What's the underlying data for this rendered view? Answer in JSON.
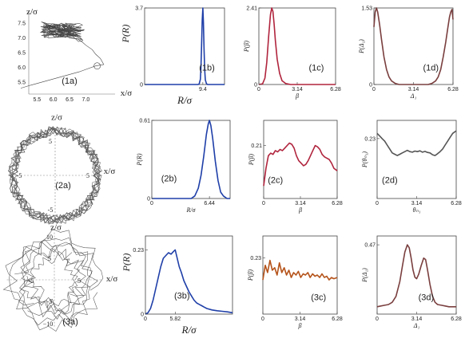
{
  "chart_data": [
    {
      "id": "1a",
      "type": "line",
      "kind": "trajectory",
      "panel_label": "(1a)",
      "xlabel": "x/σ",
      "ylabel": "z/σ",
      "xlim": [
        5.0,
        7.9
      ],
      "ylim": [
        5.1,
        7.9
      ],
      "xticks": [
        "5.5",
        "6.0",
        "6.5",
        "7.0"
      ],
      "xtick_values": [
        5.5,
        6.0,
        6.5,
        7.0
      ],
      "yticks": [
        "7.5",
        "7.0",
        "6.5",
        "6.0",
        "5.5"
      ],
      "ytick_values": [
        7.5,
        7.0,
        6.5,
        6.0,
        5.5
      ],
      "x": [
        5.0,
        5.3,
        5.8,
        6.3,
        6.8,
        7.05,
        7.3,
        7.55,
        7.45,
        7.3,
        7.2,
        7.0,
        6.9,
        6.75,
        6.55,
        6.4,
        6.25,
        6.1,
        5.95,
        5.8,
        5.7,
        5.6,
        5.75,
        5.9,
        6.05,
        6.2,
        6.35,
        6.5,
        6.6,
        6.7,
        6.8,
        6.9,
        6.95,
        6.8,
        6.65,
        6.5,
        6.35,
        6.2,
        6.05,
        5.9,
        5.8,
        6.0,
        6.2,
        6.4,
        6.6,
        6.8,
        6.9
      ],
      "y": [
        5.3,
        5.4,
        5.55,
        5.7,
        5.85,
        5.95,
        6.05,
        6.1,
        6.3,
        6.45,
        6.6,
        6.75,
        6.85,
        6.95,
        7.05,
        7.12,
        7.2,
        7.28,
        7.35,
        7.45,
        7.55,
        7.6,
        7.5,
        7.42,
        7.35,
        7.3,
        7.25,
        7.2,
        7.15,
        7.12,
        7.05,
        6.95,
        6.85,
        6.9,
        7.0,
        7.08,
        7.15,
        7.22,
        7.3,
        7.38,
        7.48,
        7.4,
        7.3,
        7.2,
        7.1,
        7.0,
        6.95
      ]
    },
    {
      "id": "1b",
      "type": "line",
      "panel_label": "(1b)",
      "xlabel": "R/σ",
      "ylabel": "P(R)",
      "color": "#1f3fa8",
      "xlim": [
        0,
        12.9
      ],
      "ylim": [
        0,
        3.7
      ],
      "xticks": [
        "9.4"
      ],
      "xtick_values": [
        9.4
      ],
      "yticks": [
        "0",
        "3.7"
      ],
      "ytick_values": [
        0,
        3.7
      ],
      "x": [
        0,
        8.6,
        8.8,
        9.0,
        9.1,
        9.2,
        9.3,
        9.4,
        9.5,
        9.6,
        9.7,
        9.8,
        10.0,
        10.2,
        12.9
      ],
      "y": [
        0,
        0,
        0.02,
        0.25,
        0.8,
        1.9,
        3.1,
        3.7,
        3.0,
        1.7,
        0.7,
        0.22,
        0.03,
        0,
        0
      ]
    },
    {
      "id": "1c",
      "type": "line",
      "panel_label": "(1c)",
      "xlabel": "β",
      "ylabel": "P(β)",
      "color": "#b0243d",
      "xlim": [
        0,
        6.28
      ],
      "ylim": [
        0,
        2.41
      ],
      "xticks": [
        "0",
        "3.14",
        "6.28"
      ],
      "xtick_values": [
        0,
        3.14,
        6.28
      ],
      "yticks": [
        "0",
        "2.41"
      ],
      "ytick_values": [
        0,
        2.41
      ],
      "x": [
        0,
        0.3,
        0.5,
        0.65,
        0.8,
        0.95,
        1.05,
        1.15,
        1.25,
        1.35,
        1.5,
        1.7,
        1.9,
        2.2,
        2.6,
        6.28
      ],
      "y": [
        0,
        0.02,
        0.2,
        0.7,
        1.5,
        2.2,
        2.41,
        2.3,
        1.9,
        1.4,
        0.8,
        0.35,
        0.12,
        0.03,
        0,
        0
      ]
    },
    {
      "id": "1d",
      "type": "line",
      "panel_label": "(1d)",
      "xlabel": "Δ₁",
      "ylabel": "P(Δ₁)",
      "color": "#7a3e3e",
      "xlim": [
        0,
        6.28
      ],
      "ylim": [
        0,
        1.53
      ],
      "xticks": [
        "0",
        "3.14",
        "6.28"
      ],
      "xtick_values": [
        0,
        3.14,
        6.28
      ],
      "yticks": [
        "0",
        "1.53"
      ],
      "ytick_values": [
        0,
        1.53
      ],
      "x": [
        0,
        0.1,
        0.2,
        0.3,
        0.45,
        0.6,
        0.8,
        1.0,
        1.2,
        1.4,
        1.7,
        2.0,
        2.4,
        3.14,
        3.9,
        4.3,
        4.6,
        4.9,
        5.1,
        5.3,
        5.5,
        5.7,
        5.85,
        6.0,
        6.1,
        6.2,
        6.28
      ],
      "y": [
        1.15,
        1.45,
        1.53,
        1.45,
        1.2,
        0.9,
        0.55,
        0.3,
        0.15,
        0.07,
        0.02,
        0,
        0,
        0,
        0,
        0,
        0.02,
        0.07,
        0.15,
        0.3,
        0.55,
        0.85,
        1.1,
        1.35,
        1.45,
        1.5,
        1.3
      ]
    },
    {
      "id": "2a",
      "type": "line",
      "kind": "trajectory",
      "panel_label": "(2a)",
      "xlabel": "x/σ",
      "ylabel": "z/σ",
      "xlim": [
        -7.5,
        7.5
      ],
      "ylim": [
        -7.5,
        7.5
      ],
      "ticks": [
        "5",
        "5",
        "-5",
        "-5"
      ],
      "ring_radius": 6.44
    },
    {
      "id": "2b",
      "type": "line",
      "panel_label": "(2b)",
      "xlabel": "R/σ",
      "ylabel": "P(R)",
      "color": "#1f3fa8",
      "xlim": [
        0,
        8.75
      ],
      "ylim": [
        0,
        0.61
      ],
      "xticks": [
        "0",
        "6.44"
      ],
      "xtick_values": [
        0,
        6.44
      ],
      "yticks": [
        "0",
        "0.61"
      ],
      "ytick_values": [
        0,
        0.61
      ],
      "x": [
        0,
        4.4,
        4.8,
        5.2,
        5.5,
        5.8,
        6.1,
        6.3,
        6.44,
        6.6,
        6.8,
        7.1,
        7.4,
        7.7,
        8.0,
        8.4,
        8.75
      ],
      "y": [
        0,
        0,
        0.02,
        0.08,
        0.18,
        0.33,
        0.5,
        0.58,
        0.61,
        0.57,
        0.47,
        0.29,
        0.14,
        0.05,
        0.02,
        0,
        0
      ]
    },
    {
      "id": "2c",
      "type": "line",
      "panel_label": "(2c)",
      "xlabel": "β",
      "ylabel": "P(β)",
      "color": "#b0243d",
      "xlim": [
        0,
        6.28
      ],
      "ylim": [
        0,
        0.31
      ],
      "xticks": [
        "0",
        "3.14",
        "6.28"
      ],
      "xtick_values": [
        0,
        3.14,
        6.28
      ],
      "yticks": [
        "0.21"
      ],
      "ytick_values": [
        0.21
      ],
      "x": [
        0,
        0.2,
        0.4,
        0.6,
        0.8,
        1.0,
        1.2,
        1.4,
        1.6,
        1.8,
        2.0,
        2.2,
        2.4,
        2.6,
        2.8,
        3.0,
        3.2,
        3.4,
        3.6,
        3.8,
        4.0,
        4.2,
        4.4,
        4.6,
        4.8,
        5.0,
        5.2,
        5.4,
        5.6,
        5.8,
        6.0,
        6.28
      ],
      "y": [
        0.05,
        0.12,
        0.17,
        0.18,
        0.175,
        0.19,
        0.185,
        0.195,
        0.19,
        0.2,
        0.21,
        0.22,
        0.215,
        0.2,
        0.17,
        0.15,
        0.14,
        0.13,
        0.135,
        0.15,
        0.17,
        0.19,
        0.21,
        0.205,
        0.195,
        0.175,
        0.165,
        0.16,
        0.155,
        0.14,
        0.12,
        0.11
      ]
    },
    {
      "id": "2d",
      "type": "line",
      "panel_label": "(2d)",
      "xlabel": "θₙ₁",
      "ylabel": "P(θₙ₁)",
      "color": "#555555",
      "xlim": [
        0,
        6.28
      ],
      "ylim": [
        0,
        0.3
      ],
      "xticks": [
        "0",
        "3.14",
        "6.28"
      ],
      "xtick_values": [
        0,
        3.14,
        6.28
      ],
      "yticks": [
        "0.23"
      ],
      "ytick_values": [
        0.23
      ],
      "x": [
        0,
        0.2,
        0.4,
        0.6,
        0.8,
        1.0,
        1.2,
        1.4,
        1.6,
        1.8,
        2.0,
        2.2,
        2.4,
        2.6,
        2.8,
        3.0,
        3.2,
        3.4,
        3.6,
        3.8,
        4.0,
        4.2,
        4.4,
        4.6,
        4.8,
        5.0,
        5.2,
        5.4,
        5.6,
        5.8,
        6.0,
        6.28
      ],
      "y": [
        0.25,
        0.24,
        0.23,
        0.22,
        0.205,
        0.19,
        0.175,
        0.17,
        0.165,
        0.17,
        0.175,
        0.18,
        0.185,
        0.18,
        0.178,
        0.182,
        0.18,
        0.183,
        0.178,
        0.181,
        0.177,
        0.175,
        0.168,
        0.165,
        0.172,
        0.18,
        0.19,
        0.205,
        0.22,
        0.235,
        0.25,
        0.26
      ]
    },
    {
      "id": "3a",
      "type": "line",
      "kind": "trajectory",
      "panel_label": "(3a)",
      "xlabel": "x/σ",
      "ylabel": "z/σ",
      "xlim": [
        -12,
        12
      ],
      "ylim": [
        -12,
        12
      ],
      "ticks": [
        "10",
        "5",
        "-5",
        "-5",
        "5",
        "−10"
      ]
    },
    {
      "id": "3b",
      "type": "line",
      "panel_label": "(3b)",
      "xlabel": "R/σ",
      "ylabel": "P(R)",
      "color": "#1f3fa8",
      "xlim": [
        0,
        17
      ],
      "ylim": [
        0,
        0.28
      ],
      "xticks": [
        "0",
        "5.82"
      ],
      "xtick_values": [
        0,
        5.82
      ],
      "yticks": [
        "0",
        "0.23"
      ],
      "ytick_values": [
        0,
        0.23
      ],
      "x": [
        0,
        0.5,
        1.0,
        1.5,
        2.0,
        2.5,
        3.0,
        3.5,
        4.0,
        4.5,
        5.0,
        5.5,
        5.82,
        6.2,
        6.6,
        7.0,
        7.5,
        8.0,
        8.5,
        9.0,
        9.5,
        10.0,
        10.5,
        11.0,
        11.5,
        12.0,
        13.0,
        14.0,
        15.0,
        16.0,
        17.0
      ],
      "y": [
        0,
        0.005,
        0.02,
        0.05,
        0.09,
        0.13,
        0.17,
        0.2,
        0.21,
        0.22,
        0.215,
        0.225,
        0.23,
        0.2,
        0.17,
        0.15,
        0.12,
        0.1,
        0.08,
        0.065,
        0.05,
        0.04,
        0.035,
        0.03,
        0.025,
        0.02,
        0.015,
        0.012,
        0.01,
        0.008,
        0.005
      ]
    },
    {
      "id": "3c",
      "type": "line",
      "panel_label": "(3c)",
      "xlabel": "β",
      "ylabel": "P(β)",
      "color": "#b5531a",
      "xlim": [
        0,
        6.28
      ],
      "ylim": [
        0,
        0.32
      ],
      "xticks": [
        "0",
        "3.14",
        "6.28"
      ],
      "xtick_values": [
        0,
        3.14,
        6.28
      ],
      "yticks": [
        "0.23"
      ],
      "ytick_values": [
        0.23
      ],
      "x": [
        0,
        0.2,
        0.4,
        0.6,
        0.8,
        1.0,
        1.2,
        1.4,
        1.6,
        1.8,
        2.0,
        2.2,
        2.4,
        2.6,
        2.8,
        3.0,
        3.2,
        3.4,
        3.6,
        3.8,
        4.0,
        4.2,
        4.4,
        4.6,
        4.8,
        5.0,
        5.2,
        5.4,
        5.6,
        5.8,
        6.0,
        6.28
      ],
      "y": [
        0.14,
        0.2,
        0.17,
        0.22,
        0.18,
        0.19,
        0.16,
        0.21,
        0.17,
        0.19,
        0.16,
        0.18,
        0.15,
        0.17,
        0.16,
        0.175,
        0.15,
        0.165,
        0.16,
        0.17,
        0.15,
        0.165,
        0.155,
        0.16,
        0.15,
        0.165,
        0.15,
        0.155,
        0.14,
        0.15,
        0.145,
        0.15
      ]
    },
    {
      "id": "3d",
      "type": "line",
      "panel_label": "(3d)",
      "xlabel": "Δ₁",
      "ylabel": "P(Δ₁)",
      "color": "#7a3e3e",
      "xlim": [
        0,
        6.28
      ],
      "ylim": [
        0,
        0.53
      ],
      "xticks": [
        "0",
        "3.14",
        "6.28"
      ],
      "xtick_values": [
        0,
        3.14,
        6.28
      ],
      "yticks": [
        "0.47"
      ],
      "ytick_values": [
        0.47
      ],
      "x": [
        0,
        0.3,
        0.6,
        0.9,
        1.2,
        1.5,
        1.8,
        2.0,
        2.2,
        2.4,
        2.55,
        2.7,
        2.85,
        3.0,
        3.14,
        3.3,
        3.5,
        3.7,
        3.85,
        4.0,
        4.2,
        4.4,
        4.6,
        4.8,
        5.1,
        5.4,
        5.7,
        6.0,
        6.28
      ],
      "y": [
        0.05,
        0.055,
        0.06,
        0.065,
        0.08,
        0.12,
        0.22,
        0.32,
        0.42,
        0.47,
        0.45,
        0.38,
        0.3,
        0.25,
        0.24,
        0.27,
        0.33,
        0.38,
        0.37,
        0.3,
        0.2,
        0.12,
        0.08,
        0.065,
        0.06,
        0.055,
        0.05,
        0.05,
        0.05
      ]
    }
  ]
}
